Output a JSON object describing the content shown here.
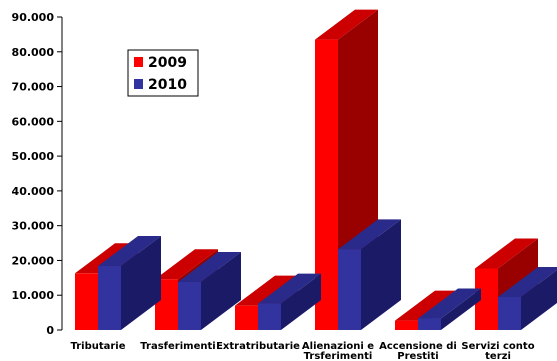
{
  "chart_data": {
    "type": "bar",
    "categories": [
      [
        "Tributarie"
      ],
      [
        "Trasferimenti"
      ],
      [
        "Extratributarie"
      ],
      [
        "Alienazioni e",
        "Trsferimenti"
      ],
      [
        "Accensione di",
        "Prestiti"
      ],
      [
        "Servizi conto",
        "terzi"
      ]
    ],
    "series": [
      {
        "name": "2009",
        "values": [
          16300,
          14600,
          7000,
          83500,
          2700,
          17700
        ],
        "front": "#ff0000",
        "top": "#cc0000",
        "side": "#990000"
      },
      {
        "name": "2010",
        "values": [
          18400,
          13800,
          7600,
          23200,
          3300,
          9500
        ],
        "front": "#3333a0",
        "top": "#2a2a8a",
        "side": "#1a1a66"
      }
    ],
    "yticks": [
      "0",
      "10.000",
      "20.000",
      "30.000",
      "40.000",
      "50.000",
      "60.000",
      "70.000",
      "80.000",
      "90.000"
    ],
    "ylim": [
      0,
      90000
    ],
    "legend_position": "upper-left",
    "grid": false
  }
}
